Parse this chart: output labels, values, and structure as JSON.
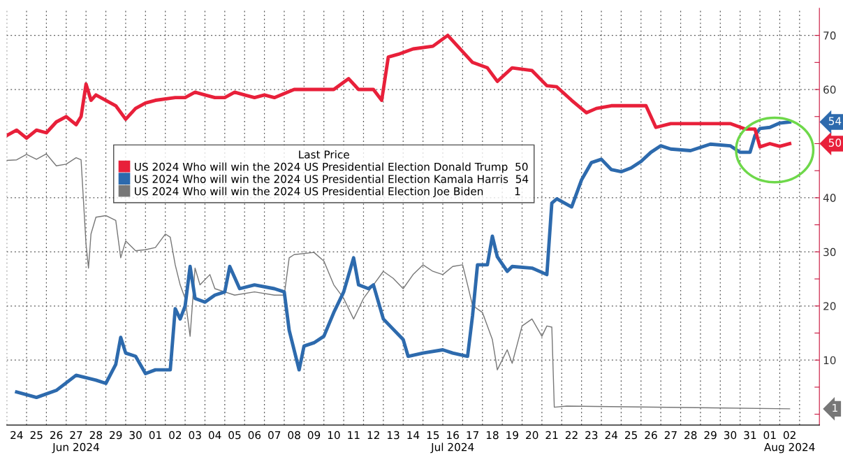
{
  "chart_data": {
    "type": "line",
    "legend_title": "Last Price",
    "legend": "left",
    "grid": true,
    "marker": "none",
    "line_style": "solid",
    "xlim": [
      "2024-06-24T00:00",
      "2024-08-04T00:00"
    ],
    "ylim": [
      -2,
      75
    ],
    "yticks": [
      {
        "value": 0,
        "label": null
      },
      {
        "value": 5,
        "label": null
      },
      10,
      {
        "value": 15,
        "label": null
      },
      20,
      {
        "value": 25,
        "label": null
      },
      30,
      {
        "value": 35,
        "label": null
      },
      40,
      {
        "value": 45,
        "label": null
      },
      {
        "value": 50,
        "label": null
      },
      {
        "value": 55,
        "label": null
      },
      60,
      {
        "value": 65,
        "label": null
      },
      70
    ],
    "xticks": [
      {
        "value": "2024-06-24T00:00",
        "label": null
      },
      {
        "value": "2024-06-24T12:00",
        "label": "24"
      },
      {
        "value": "2024-06-25T00:00",
        "label": null
      },
      {
        "value": "2024-06-25T12:00",
        "label": "25"
      },
      {
        "value": "2024-06-26T00:00",
        "label": null
      },
      {
        "value": "2024-06-26T12:00",
        "label": "26"
      },
      {
        "value": "2024-06-27T00:00",
        "label": null
      },
      {
        "value": "2024-06-27T12:00",
        "label": "27\nJun 2024"
      },
      {
        "value": "2024-06-28T00:00",
        "label": null
      },
      {
        "value": "2024-06-28T12:00",
        "label": "28"
      },
      {
        "value": "2024-06-29T00:00",
        "label": null
      },
      {
        "value": "2024-06-29T12:00",
        "label": "29"
      },
      {
        "value": "2024-06-30T00:00",
        "label": null
      },
      {
        "value": "2024-06-30T12:00",
        "label": "30"
      },
      {
        "value": "2024-07-01T00:00",
        "label": null
      },
      {
        "value": "2024-07-01T12:00",
        "label": "01"
      },
      {
        "value": "2024-07-02T00:00",
        "label": null
      },
      {
        "value": "2024-07-02T12:00",
        "label": "02"
      },
      {
        "value": "2024-07-03T00:00",
        "label": null
      },
      {
        "value": "2024-07-03T12:00",
        "label": "03"
      },
      {
        "value": "2024-07-04T00:00",
        "label": null
      },
      {
        "value": "2024-07-04T12:00",
        "label": "04"
      },
      {
        "value": "2024-07-05T00:00",
        "label": null
      },
      {
        "value": "2024-07-05T12:00",
        "label": "05"
      },
      {
        "value": "2024-07-06T00:00",
        "label": null
      },
      {
        "value": "2024-07-06T12:00",
        "label": "06"
      },
      {
        "value": "2024-07-07T00:00",
        "label": null
      },
      {
        "value": "2024-07-07T12:00",
        "label": "07"
      },
      {
        "value": "2024-07-08T00:00",
        "label": null
      },
      {
        "value": "2024-07-08T12:00",
        "label": "08"
      },
      {
        "value": "2024-07-09T00:00",
        "label": null
      },
      {
        "value": "2024-07-09T12:00",
        "label": "09"
      },
      {
        "value": "2024-07-10T00:00",
        "label": null
      },
      {
        "value": "2024-07-10T12:00",
        "label": "10"
      },
      {
        "value": "2024-07-11T00:00",
        "label": null
      },
      {
        "value": "2024-07-11T12:00",
        "label": "11"
      },
      {
        "value": "2024-07-12T00:00",
        "label": null
      },
      {
        "value": "2024-07-12T12:00",
        "label": "12"
      },
      {
        "value": "2024-07-13T00:00",
        "label": null
      },
      {
        "value": "2024-07-13T12:00",
        "label": "13"
      },
      {
        "value": "2024-07-14T00:00",
        "label": null
      },
      {
        "value": "2024-07-14T12:00",
        "label": "14"
      },
      {
        "value": "2024-07-15T00:00",
        "label": null
      },
      {
        "value": "2024-07-15T12:00",
        "label": "15"
      },
      {
        "value": "2024-07-16T00:00",
        "label": null
      },
      {
        "value": "2024-07-16T12:00",
        "label": "16\nJul 2024"
      },
      {
        "value": "2024-07-17T00:00",
        "label": null
      },
      {
        "value": "2024-07-17T12:00",
        "label": "17"
      },
      {
        "value": "2024-07-18T00:00",
        "label": null
      },
      {
        "value": "2024-07-18T12:00",
        "label": "18"
      },
      {
        "value": "2024-07-19T00:00",
        "label": null
      },
      {
        "value": "2024-07-19T12:00",
        "label": "19"
      },
      {
        "value": "2024-07-20T00:00",
        "label": null
      },
      {
        "value": "2024-07-20T12:00",
        "label": "20"
      },
      {
        "value": "2024-07-21T00:00",
        "label": null
      },
      {
        "value": "2024-07-21T12:00",
        "label": "21"
      },
      {
        "value": "2024-07-22T00:00",
        "label": null
      },
      {
        "value": "2024-07-22T12:00",
        "label": "22"
      },
      {
        "value": "2024-07-23T00:00",
        "label": null
      },
      {
        "value": "2024-07-23T12:00",
        "label": "23"
      },
      {
        "value": "2024-07-24T00:00",
        "label": null
      },
      {
        "value": "2024-07-24T12:00",
        "label": "24"
      },
      {
        "value": "2024-07-25T00:00",
        "label": null
      },
      {
        "value": "2024-07-25T12:00",
        "label": "25"
      },
      {
        "value": "2024-07-26T00:00",
        "label": null
      },
      {
        "value": "2024-07-26T12:00",
        "label": "26"
      },
      {
        "value": "2024-07-27T00:00",
        "label": null
      },
      {
        "value": "2024-07-27T12:00",
        "label": "27"
      },
      {
        "value": "2024-07-28T00:00",
        "label": null
      },
      {
        "value": "2024-07-28T12:00",
        "label": "28"
      },
      {
        "value": "2024-07-29T00:00",
        "label": null
      },
      {
        "value": "2024-07-29T12:00",
        "label": "29"
      },
      {
        "value": "2024-07-30T00:00",
        "label": null
      },
      {
        "value": "2024-07-30T12:00",
        "label": "30"
      },
      {
        "value": "2024-07-31T00:00",
        "label": null
      },
      {
        "value": "2024-07-31T12:00",
        "label": "31"
      },
      {
        "value": "2024-08-01T00:00",
        "label": null
      },
      {
        "value": "2024-08-01T12:00",
        "label": "01"
      },
      {
        "value": "2024-08-02T00:00",
        "label": null
      },
      {
        "value": "2024-08-02T12:00",
        "label": "02\nAug 2024"
      },
      {
        "value": "2024-08-03T00:00",
        "label": null
      }
    ],
    "series": [
      {
        "name": "US 2024 Who will win the 2024 US Presidential Election Donald Trump  50",
        "color": "#e8203a",
        "x": [
          "2024-06-24T00:00",
          "2024-06-24T12:00",
          "2024-06-25T00:00",
          "2024-06-25T12:00",
          "2024-06-26T00:00",
          "2024-06-26T12:00",
          "2024-06-27T00:00",
          "2024-06-27T12:00",
          "2024-06-27T18:00",
          "2024-06-28T00:00",
          "2024-06-28T06:00",
          "2024-06-28T12:00",
          "2024-06-29T00:00",
          "2024-06-29T12:00",
          "2024-06-30T00:00",
          "2024-06-30T12:00",
          "2024-07-01T00:00",
          "2024-07-01T12:00",
          "2024-07-02T12:00",
          "2024-07-03T00:00",
          "2024-07-03T12:00",
          "2024-07-04T00:00",
          "2024-07-04T12:00",
          "2024-07-05T00:00",
          "2024-07-05T12:00",
          "2024-07-06T00:00",
          "2024-07-06T12:00",
          "2024-07-07T00:00",
          "2024-07-07T12:00",
          "2024-07-08T12:00",
          "2024-07-09T12:00",
          "2024-07-10T12:00",
          "2024-07-11T06:00",
          "2024-07-11T18:00",
          "2024-07-12T12:00",
          "2024-07-12T22:00",
          "2024-07-13T06:00",
          "2024-07-13T18:00",
          "2024-07-14T12:00",
          "2024-07-15T12:00",
          "2024-07-16T06:00",
          "2024-07-16T18:00",
          "2024-07-17T12:00",
          "2024-07-18T06:00",
          "2024-07-18T18:00",
          "2024-07-19T12:00",
          "2024-07-20T12:00",
          "2024-07-21T06:00",
          "2024-07-21T18:00",
          "2024-07-22T12:00",
          "2024-07-23T06:00",
          "2024-07-23T18:00",
          "2024-07-24T12:00",
          "2024-07-25T12:00",
          "2024-07-26T06:00",
          "2024-07-26T18:00",
          "2024-07-27T12:00",
          "2024-07-28T12:00",
          "2024-07-29T12:00",
          "2024-07-30T12:00",
          "2024-07-31T06:00",
          "2024-07-31T18:00",
          "2024-08-01T00:00",
          "2024-08-01T12:00",
          "2024-08-02T00:00",
          "2024-08-02T12:00"
        ],
        "values": [
          51.5,
          52.5,
          51,
          52.5,
          52,
          54,
          55,
          53.5,
          55,
          61,
          58,
          59,
          58,
          57,
          54.5,
          56.5,
          57.5,
          58,
          58.5,
          58.5,
          59.5,
          59,
          58.5,
          58.5,
          59.5,
          59,
          58.5,
          59,
          58.5,
          60,
          60,
          60,
          62,
          60,
          60,
          58,
          66,
          66.5,
          67.5,
          68,
          70,
          68,
          65,
          64,
          61.5,
          64,
          63.5,
          60.7,
          60.5,
          58,
          55.7,
          56.5,
          57,
          57,
          57,
          53,
          53.7,
          53.7,
          53.7,
          53.7,
          52.7,
          52.7,
          49.4,
          50,
          49.5,
          50
        ]
      },
      {
        "name": "US 2024 Who will win the 2024 US Presidential Election Kamala Harris  54",
        "color": "#2d6aad",
        "x": [
          "2024-06-24T12:00",
          "2024-06-25T12:00",
          "2024-06-26T12:00",
          "2024-06-27T12:00",
          "2024-06-28T12:00",
          "2024-06-29T00:00",
          "2024-06-29T12:00",
          "2024-06-29T18:00",
          "2024-06-30T00:00",
          "2024-06-30T12:00",
          "2024-07-01T00:00",
          "2024-07-01T12:00",
          "2024-07-02T06:00",
          "2024-07-02T12:00",
          "2024-07-02T18:00",
          "2024-07-03T00:00",
          "2024-07-03T06:00",
          "2024-07-03T12:00",
          "2024-07-04T00:00",
          "2024-07-04T12:00",
          "2024-07-05T00:00",
          "2024-07-05T06:00",
          "2024-07-05T18:00",
          "2024-07-06T12:00",
          "2024-07-07T12:00",
          "2024-07-08T00:00",
          "2024-07-08T06:00",
          "2024-07-08T18:00",
          "2024-07-09T00:00",
          "2024-07-09T12:00",
          "2024-07-10T00:00",
          "2024-07-10T12:00",
          "2024-07-11T00:00",
          "2024-07-11T12:00",
          "2024-07-11T18:00",
          "2024-07-12T06:00",
          "2024-07-12T12:00",
          "2024-07-13T00:00",
          "2024-07-13T12:00",
          "2024-07-14T00:00",
          "2024-07-14T06:00",
          "2024-07-15T00:00",
          "2024-07-16T00:00",
          "2024-07-16T12:00",
          "2024-07-17T06:00",
          "2024-07-17T12:00",
          "2024-07-17T18:00",
          "2024-07-18T06:00",
          "2024-07-18T12:00",
          "2024-07-18T18:00",
          "2024-07-19T06:00",
          "2024-07-19T12:00",
          "2024-07-20T12:00",
          "2024-07-21T06:00",
          "2024-07-21T12:00",
          "2024-07-21T18:00",
          "2024-07-22T12:00",
          "2024-07-23T00:00",
          "2024-07-23T12:00",
          "2024-07-24T00:00",
          "2024-07-24T12:00",
          "2024-07-25T00:00",
          "2024-07-25T12:00",
          "2024-07-26T00:00",
          "2024-07-26T12:00",
          "2024-07-27T00:00",
          "2024-07-27T12:00",
          "2024-07-28T12:00",
          "2024-07-29T12:00",
          "2024-07-30T12:00",
          "2024-07-31T00:00",
          "2024-07-31T12:00",
          "2024-07-31T18:00",
          "2024-08-01T00:00",
          "2024-08-01T12:00",
          "2024-08-02T00:00",
          "2024-08-02T12:00"
        ],
        "values": [
          4.1,
          3.1,
          4.4,
          7.2,
          6.3,
          5.7,
          9.2,
          14.2,
          11.3,
          10.7,
          7.5,
          8.2,
          8.2,
          19.5,
          17.6,
          20,
          27.3,
          21.4,
          20.7,
          22,
          22.6,
          27.3,
          23.2,
          23.9,
          23.2,
          22.6,
          15.5,
          8.2,
          12.6,
          13.2,
          14.4,
          18.8,
          22.6,
          28.9,
          23.9,
          23.2,
          23.9,
          17.6,
          15.7,
          13.8,
          10.7,
          11.3,
          11.9,
          11.3,
          10.7,
          18.2,
          27.6,
          27.6,
          32.9,
          29.1,
          26.4,
          27.3,
          27,
          25.8,
          39,
          39.8,
          38.3,
          43.3,
          46.5,
          47.1,
          45.2,
          44.8,
          45.5,
          46.7,
          48.4,
          49.6,
          49,
          48.7,
          49.9,
          49.6,
          48.4,
          48.4,
          51.5,
          52.8,
          53,
          53.8,
          54
        ]
      },
      {
        "name": "US 2024 Who will win the 2024 US Presidential Election Joe Biden         1",
        "color": "#777777",
        "x": [
          "2024-06-24T00:00",
          "2024-06-24T12:00",
          "2024-06-25T00:00",
          "2024-06-25T12:00",
          "2024-06-26T00:00",
          "2024-06-26T12:00",
          "2024-06-27T00:00",
          "2024-06-27T12:00",
          "2024-06-27T18:00",
          "2024-06-28T00:00",
          "2024-06-28T03:00",
          "2024-06-28T06:00",
          "2024-06-28T12:00",
          "2024-06-29T00:00",
          "2024-06-29T12:00",
          "2024-06-29T18:00",
          "2024-06-30T00:00",
          "2024-06-30T12:00",
          "2024-07-01T00:00",
          "2024-07-01T12:00",
          "2024-07-02T00:00",
          "2024-07-02T06:00",
          "2024-07-02T12:00",
          "2024-07-02T18:00",
          "2024-07-03T00:00",
          "2024-07-03T06:00",
          "2024-07-03T12:00",
          "2024-07-03T18:00",
          "2024-07-04T06:00",
          "2024-07-04T12:00",
          "2024-07-05T00:00",
          "2024-07-05T12:00",
          "2024-07-06T12:00",
          "2024-07-07T12:00",
          "2024-07-08T00:00",
          "2024-07-08T06:00",
          "2024-07-08T12:00",
          "2024-07-09T12:00",
          "2024-07-10T00:00",
          "2024-07-10T12:00",
          "2024-07-11T00:00",
          "2024-07-11T12:00",
          "2024-07-12T00:00",
          "2024-07-12T12:00",
          "2024-07-13T00:00",
          "2024-07-13T12:00",
          "2024-07-14T00:00",
          "2024-07-14T12:00",
          "2024-07-15T00:00",
          "2024-07-15T12:00",
          "2024-07-16T00:00",
          "2024-07-16T12:00",
          "2024-07-17T00:00",
          "2024-07-17T06:00",
          "2024-07-17T12:00",
          "2024-07-18T00:00",
          "2024-07-18T12:00",
          "2024-07-18T18:00",
          "2024-07-19T06:00",
          "2024-07-19T12:00",
          "2024-07-20T00:00",
          "2024-07-20T12:00",
          "2024-07-21T00:00",
          "2024-07-21T06:00",
          "2024-07-21T12:00",
          "2024-07-21T15:00",
          "2024-07-22T06:00",
          "2024-08-02T12:00"
        ],
        "values": [
          46.9,
          47,
          48,
          47.1,
          48.1,
          45.9,
          46.2,
          47.4,
          47,
          31.4,
          27,
          33.3,
          36.4,
          36.7,
          35.8,
          28.9,
          32,
          30.2,
          30.4,
          30.8,
          33.3,
          32.7,
          27.6,
          23.9,
          21.4,
          14.4,
          27,
          23.9,
          25.8,
          23.2,
          22.6,
          22,
          22.6,
          22,
          22,
          28.9,
          29.5,
          29.9,
          28.3,
          23.9,
          21.4,
          17.6,
          21.4,
          23.9,
          26.4,
          25.1,
          23.2,
          25.8,
          27.6,
          26.4,
          25.8,
          27.3,
          27.6,
          23.9,
          20.1,
          18.8,
          13.8,
          8.2,
          11.9,
          9.4,
          16.3,
          17.6,
          14.4,
          16.3,
          16.1,
          1.3,
          1.5,
          1
        ]
      }
    ],
    "annotations": [
      "50",
      "54",
      "1"
    ]
  }
}
